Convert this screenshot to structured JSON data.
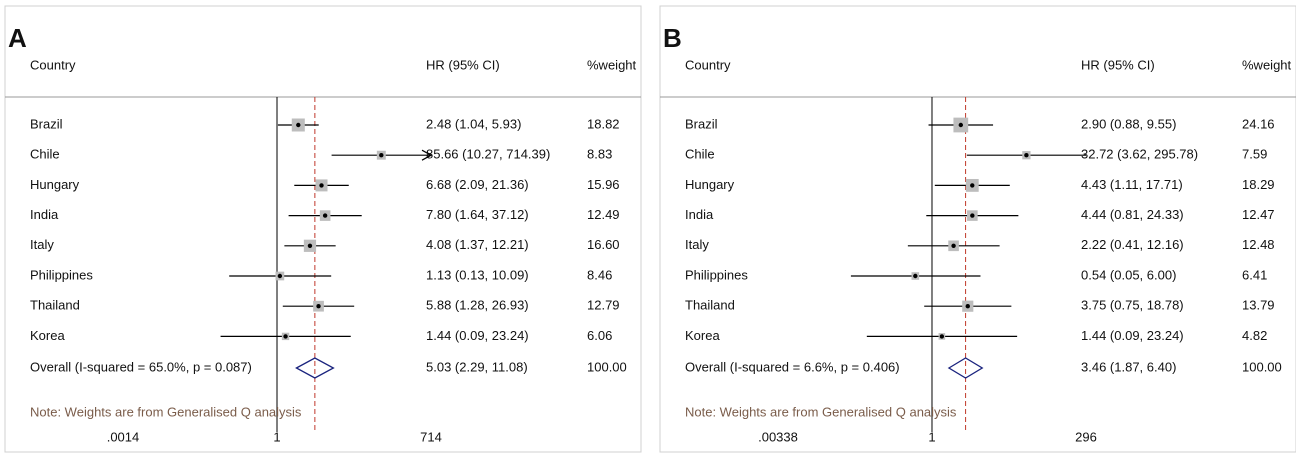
{
  "chart_data": [
    {
      "type": "forest",
      "label": "A",
      "country_header": "Country",
      "hr_header": "HR (95% CI)",
      "weight_header": "%weight",
      "categories": [
        "Brazil",
        "Chile",
        "Hungary",
        "India",
        "Italy",
        "Philippines",
        "Thailand",
        "Korea",
        "Overall (I-squared = 65.0%, p = 0.087)"
      ],
      "values": [
        2.48,
        85.66,
        6.68,
        7.8,
        4.08,
        1.13,
        5.88,
        1.44,
        5.03
      ],
      "lower": [
        1.04,
        10.27,
        2.09,
        1.64,
        1.37,
        0.13,
        1.28,
        0.09,
        2.29
      ],
      "upper": [
        5.93,
        714.39,
        21.36,
        37.12,
        12.21,
        10.09,
        26.93,
        23.24,
        11.08
      ],
      "value_labels": [
        "2.48 (1.04, 5.93)",
        "85.66 (10.27, 714.39)",
        "6.68 (2.09, 21.36)",
        "7.80 (1.64, 37.12)",
        "4.08 (1.37, 12.21)",
        "1.13 (0.13, 10.09)",
        "5.88 (1.28, 26.93)",
        "1.44 (0.09, 23.24)",
        "5.03 (2.29, 11.08)"
      ],
      "weights": [
        18.82,
        8.83,
        15.96,
        12.49,
        16.6,
        8.46,
        12.79,
        6.06,
        100.0
      ],
      "weight_labels": [
        "18.82",
        "8.83",
        "15.96",
        "12.49",
        "16.60",
        "8.46",
        "12.79",
        "6.06",
        "100.00"
      ],
      "note": "Note: Weights are from Generalised Q analysis",
      "log_scale": true,
      "xlim": [
        0.0014,
        714
      ],
      "xticks": [
        {
          "value": 0.0014,
          "label": ".0014"
        },
        1,
        714
      ],
      "box_color": "#bdbdbd",
      "line_color": "#000000",
      "overall_line_color": "#c0392b",
      "diamond_color": "#1a237e"
    },
    {
      "type": "forest",
      "label": "B",
      "country_header": "Country",
      "hr_header": "HR (95% CI)",
      "weight_header": "%weight",
      "categories": [
        "Brazil",
        "Chile",
        "Hungary",
        "India",
        "Italy",
        "Philippines",
        "Thailand",
        "Korea",
        "Overall (I-squared = 6.6%, p = 0.406)"
      ],
      "values": [
        2.9,
        32.72,
        4.43,
        4.44,
        2.22,
        0.54,
        3.75,
        1.44,
        3.46
      ],
      "lower": [
        0.88,
        3.62,
        1.11,
        0.81,
        0.41,
        0.05,
        0.75,
        0.09,
        1.87
      ],
      "upper": [
        9.55,
        295.78,
        17.71,
        24.33,
        12.16,
        6.0,
        18.78,
        23.24,
        6.4
      ],
      "value_labels": [
        "2.90 (0.88, 9.55)",
        "32.72 (3.62, 295.78)",
        "4.43 (1.11, 17.71)",
        "4.44 (0.81, 24.33)",
        "2.22 (0.41, 12.16)",
        "0.54 (0.05, 6.00)",
        "3.75 (0.75, 18.78)",
        "1.44 (0.09, 23.24)",
        "3.46 (1.87, 6.40)"
      ],
      "weights": [
        24.16,
        7.59,
        18.29,
        12.47,
        12.48,
        6.41,
        13.79,
        4.82,
        100.0
      ],
      "weight_labels": [
        "24.16",
        "7.59",
        "18.29",
        "12.47",
        "12.48",
        "6.41",
        "13.79",
        "4.82",
        "100.00"
      ],
      "note": "Note: Weights are from Generalised Q analysis",
      "log_scale": true,
      "xlim": [
        0.00338,
        296
      ],
      "xticks": [
        {
          "value": 0.00338,
          "label": ".00338"
        },
        1,
        296
      ],
      "box_color": "#bdbdbd",
      "line_color": "#000000",
      "overall_line_color": "#c0392b",
      "diamond_color": "#1a237e"
    }
  ]
}
